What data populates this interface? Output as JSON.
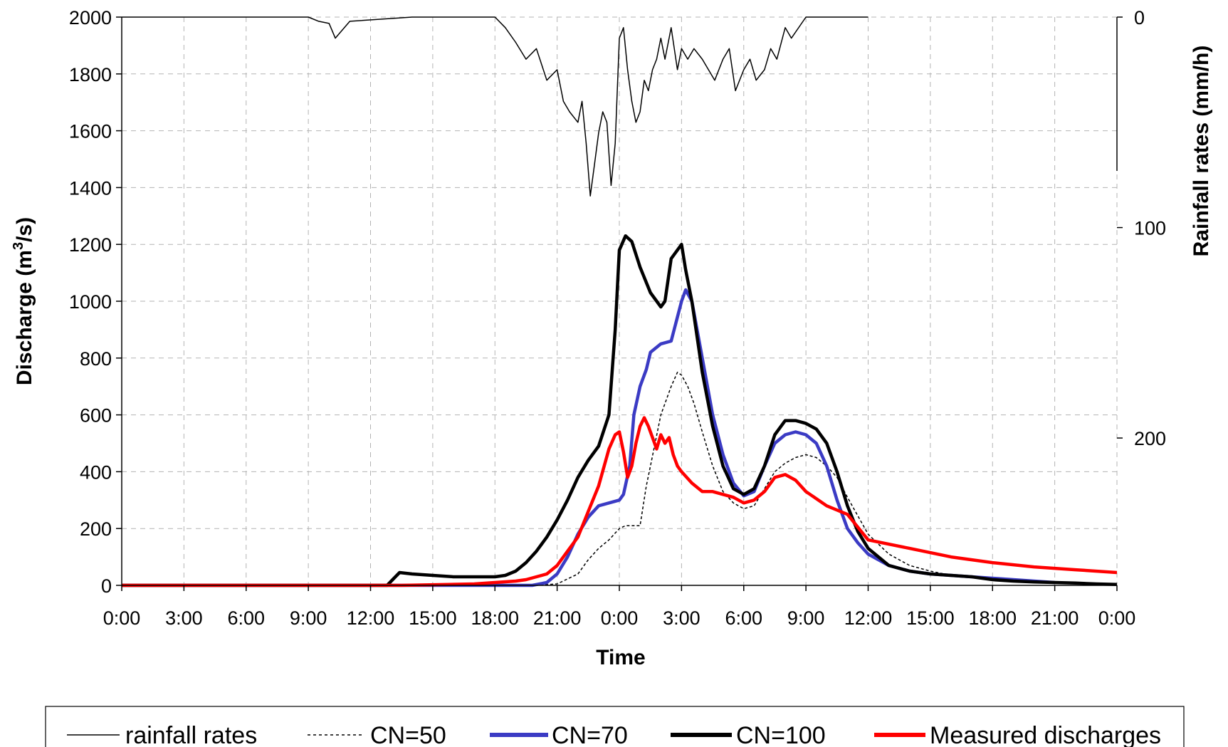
{
  "chart_data": {
    "type": "line",
    "xlabel": "Time",
    "ylabel": "Discharge (m",
    "ylabel_sup": "3",
    "ylabel_tail": "/s)",
    "y2label": "Rainfall rates (mm/h)",
    "x_ticks": [
      "0:00",
      "3:00",
      "6:00",
      "9:00",
      "12:00",
      "15:00",
      "18:00",
      "21:00",
      "0:00",
      "3:00",
      "6:00",
      "9:00",
      "12:00",
      "15:00",
      "18:00",
      "21:00",
      "0:00"
    ],
    "x_range_hours": [
      0,
      48
    ],
    "ylim": [
      0,
      2000
    ],
    "y_ticks": [
      "0",
      "200",
      "400",
      "600",
      "800",
      "1000",
      "1200",
      "1400",
      "1600",
      "1800",
      "2000"
    ],
    "y2_ticks": [
      "0",
      "100",
      "200"
    ],
    "y2lim_inverted": [
      0,
      270
    ],
    "grid": true,
    "legend_position": "bottom",
    "colors": {
      "rain": "#000000",
      "cn50": "#000000",
      "cn70": "#3b3bc4",
      "cn100": "#000000",
      "measured": "#ff0000"
    },
    "series": [
      {
        "name": "rainfall rates",
        "axis": "right",
        "x": [
          0,
          9,
          9.5,
          10,
          10.3,
          11,
          14,
          18,
          18.5,
          19,
          19.5,
          20,
          20.5,
          21,
          21.3,
          21.6,
          22,
          22.2,
          22.4,
          22.6,
          22.8,
          23,
          23.2,
          23.4,
          23.6,
          23.8,
          24,
          24.2,
          24.4,
          24.6,
          24.8,
          25,
          25.2,
          25.4,
          25.6,
          25.8,
          26,
          26.2,
          26.5,
          26.8,
          27,
          27.3,
          27.6,
          28,
          28.3,
          28.6,
          29,
          29.3,
          29.6,
          30,
          30.3,
          30.6,
          31,
          31.3,
          31.6,
          32,
          32.3,
          33,
          33.3,
          36
        ],
        "y": [
          0,
          0,
          2,
          3,
          10,
          2,
          0,
          0,
          5,
          12,
          20,
          15,
          30,
          25,
          40,
          45,
          50,
          40,
          60,
          85,
          70,
          55,
          45,
          50,
          80,
          60,
          10,
          5,
          25,
          40,
          50,
          45,
          30,
          35,
          25,
          20,
          10,
          20,
          5,
          25,
          15,
          20,
          15,
          20,
          25,
          30,
          20,
          15,
          35,
          25,
          20,
          30,
          25,
          15,
          20,
          5,
          10,
          0,
          0,
          0
        ]
      },
      {
        "name": "CN=50",
        "x": [
          0,
          20,
          21,
          22,
          22.5,
          23,
          23.5,
          24,
          24.3,
          25,
          25.3,
          25.5,
          26,
          26.5,
          26.8,
          27,
          27.3,
          27.6,
          28,
          28.5,
          29,
          29.5,
          30,
          30.5,
          31,
          31.5,
          32,
          32.5,
          33,
          33.5,
          34,
          34.5,
          35,
          36,
          37,
          38,
          39,
          40,
          41,
          42,
          43,
          44,
          45,
          46,
          47,
          48
        ],
        "y": [
          0,
          0,
          5,
          40,
          90,
          130,
          160,
          200,
          210,
          210,
          350,
          420,
          600,
          700,
          750,
          740,
          700,
          640,
          540,
          420,
          330,
          290,
          270,
          280,
          340,
          400,
          430,
          450,
          460,
          450,
          420,
          380,
          310,
          180,
          110,
          70,
          50,
          35,
          30,
          20,
          15,
          12,
          10,
          8,
          5,
          3
        ]
      },
      {
        "name": "CN=70",
        "x": [
          0,
          19.8,
          20.5,
          21,
          21.5,
          22,
          22.5,
          23,
          23.5,
          24,
          24.2,
          24.5,
          24.7,
          25,
          25.3,
          25.5,
          26,
          26.5,
          27,
          27.2,
          27.5,
          28,
          28.5,
          29,
          29.5,
          30,
          30.5,
          31,
          31.5,
          32,
          32.5,
          33,
          33.5,
          34,
          34.5,
          35,
          35.5,
          36,
          37,
          38,
          39,
          40,
          41,
          42,
          43,
          44,
          45
        ],
        "y": [
          0,
          0,
          10,
          40,
          100,
          180,
          240,
          280,
          290,
          300,
          320,
          420,
          600,
          700,
          760,
          820,
          850,
          860,
          1000,
          1040,
          1000,
          800,
          600,
          460,
          360,
          315,
          330,
          420,
          500,
          530,
          540,
          530,
          500,
          420,
          300,
          200,
          150,
          110,
          70,
          50,
          40,
          35,
          30,
          25,
          20,
          15,
          10
        ]
      },
      {
        "name": "CN=100",
        "x": [
          0,
          12.8,
          13.2,
          13.4,
          14,
          15,
          16,
          17,
          18,
          18.5,
          19,
          19.5,
          20,
          20.5,
          21,
          21.5,
          22,
          22.5,
          23,
          23.5,
          23.8,
          24,
          24.3,
          24.6,
          25,
          25.5,
          26,
          26.2,
          26.5,
          27,
          27.2,
          27.5,
          28,
          28.5,
          29,
          29.5,
          30,
          30.5,
          31,
          31.5,
          32,
          32.5,
          33,
          33.5,
          34,
          34.5,
          35,
          35.5,
          36,
          37,
          38,
          39,
          40,
          41,
          42,
          43,
          44,
          45,
          46,
          47,
          48
        ],
        "y": [
          0,
          0,
          30,
          45,
          40,
          35,
          30,
          30,
          30,
          35,
          50,
          80,
          120,
          170,
          230,
          300,
          380,
          440,
          490,
          600,
          900,
          1180,
          1230,
          1210,
          1120,
          1030,
          980,
          1000,
          1150,
          1200,
          1110,
          1000,
          750,
          560,
          420,
          340,
          320,
          340,
          420,
          530,
          580,
          580,
          570,
          550,
          500,
          400,
          280,
          190,
          130,
          70,
          50,
          40,
          35,
          30,
          20,
          15,
          12,
          10,
          8,
          5,
          3
        ]
      },
      {
        "name": "Measured discharges",
        "x": [
          0,
          13.5,
          17,
          18,
          19,
          19.5,
          20,
          20.5,
          21,
          21.5,
          22,
          22.5,
          23,
          23.5,
          23.8,
          24,
          24.2,
          24.4,
          24.6,
          24.8,
          25,
          25.2,
          25.4,
          25.6,
          25.8,
          26,
          26.2,
          26.4,
          26.6,
          26.8,
          27,
          27.5,
          28,
          28.5,
          29,
          29.5,
          30,
          30.5,
          31,
          31.5,
          32,
          32.5,
          33,
          34,
          35,
          36,
          38,
          40,
          42,
          44,
          46,
          48
        ],
        "y": [
          0,
          0,
          5,
          10,
          15,
          20,
          30,
          40,
          70,
          120,
          170,
          260,
          350,
          480,
          530,
          540,
          470,
          380,
          420,
          500,
          560,
          590,
          560,
          520,
          480,
          530,
          500,
          520,
          460,
          420,
          400,
          360,
          330,
          330,
          320,
          310,
          290,
          300,
          330,
          380,
          390,
          370,
          330,
          280,
          250,
          160,
          130,
          100,
          80,
          65,
          55,
          45
        ]
      }
    ]
  },
  "legend": {
    "rain": "rainfall rates",
    "cn50": "CN=50",
    "cn70": "CN=70",
    "cn100": "CN=100",
    "measured": "Measured discharges"
  }
}
